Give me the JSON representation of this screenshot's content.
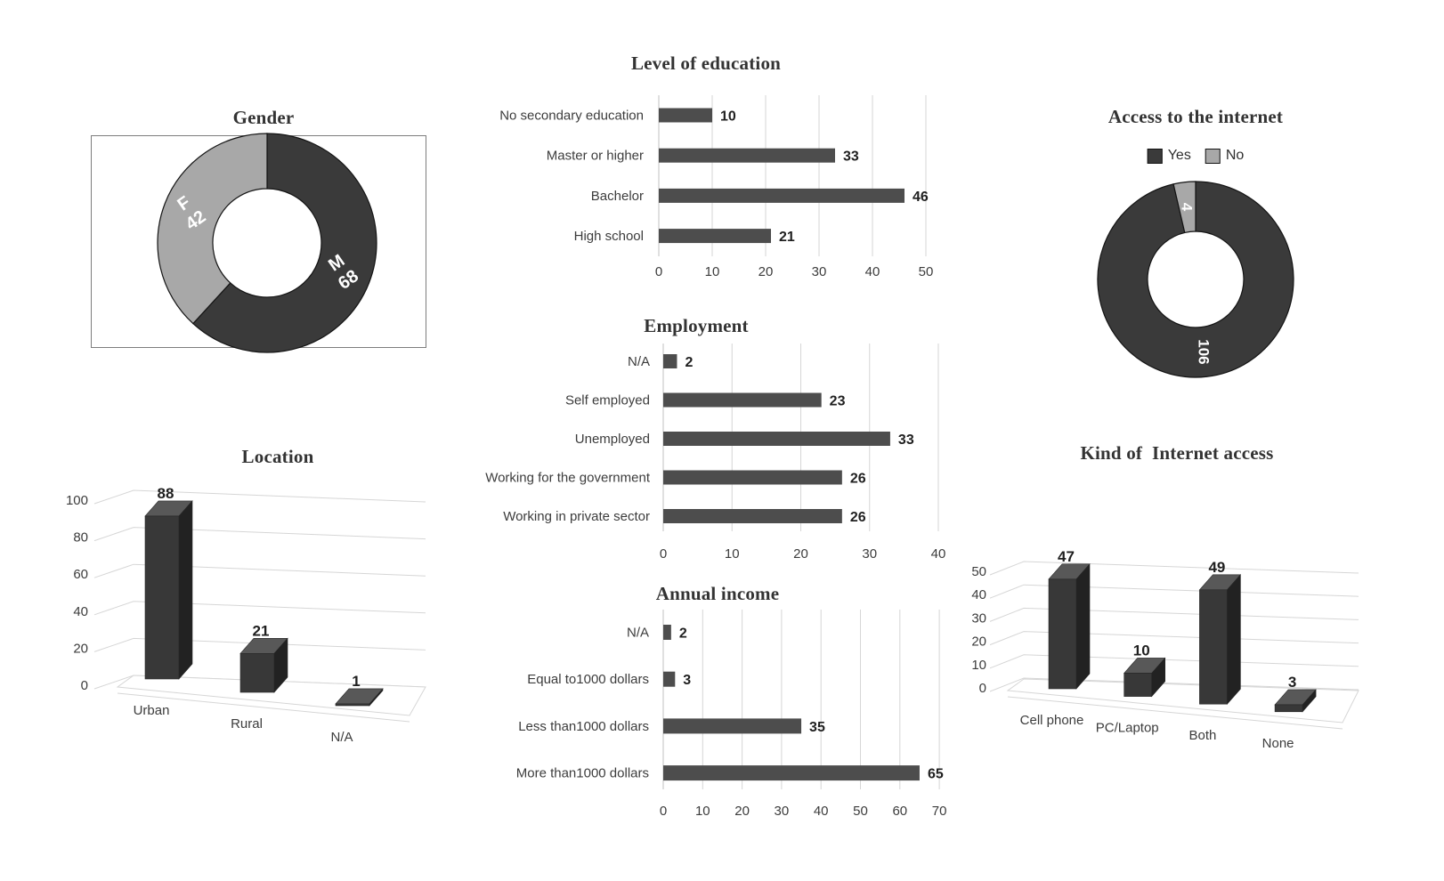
{
  "figure": {
    "description": "Survey demographics figure with seven charts",
    "background": "#ffffff"
  },
  "styles": {
    "bar_color": "#4d4d4d",
    "dark": "#3a3a3a",
    "light_gray": "#a8a8a8",
    "grid_color": "#d6d6d6",
    "axis_color": "#c0c0c0",
    "text_color": "#3c3c3c",
    "value_color": "#1f1f1f",
    "top_face": "#585858",
    "side_face": "#222222",
    "front_face": "#383838",
    "edge_color": "#262626",
    "donut_label_color": "#ffffff"
  },
  "chart_data": [
    {
      "id": "gender",
      "type": "pie",
      "variant": "donut",
      "title": "Gender",
      "framed": true,
      "label_color": "#ffffff",
      "slices": [
        {
          "label": "M",
          "value": 68,
          "color": "#3a3a3a"
        },
        {
          "label": "F",
          "value": 42,
          "color": "#a8a8a8"
        }
      ]
    },
    {
      "id": "education",
      "type": "bar",
      "orientation": "horizontal",
      "title": "Level of education",
      "categories": [
        "No secondary education",
        "Master or higher",
        "Bachelor",
        "High school"
      ],
      "values": [
        10,
        33,
        46,
        21
      ],
      "xlim": [
        0,
        50
      ],
      "xticks": [
        0,
        10,
        20,
        30,
        40,
        50
      ],
      "grid": true,
      "bar_color": "#4d4d4d"
    },
    {
      "id": "internet_access",
      "type": "pie",
      "variant": "donut",
      "title": "Access to the internet",
      "legend_position": "top",
      "label_color": "#ffffff",
      "legend": [
        {
          "label": "Yes",
          "color": "#3a3a3a"
        },
        {
          "label": "No",
          "color": "#a8a8a8"
        }
      ],
      "slices": [
        {
          "label": "Yes",
          "value": 106,
          "color": "#3a3a3a"
        },
        {
          "label": "No",
          "value": 4,
          "color": "#a8a8a8"
        }
      ]
    },
    {
      "id": "location",
      "type": "bar",
      "variant": "3d-column",
      "title": "Location",
      "categories": [
        "Urban",
        "Rural",
        "N/A"
      ],
      "values": [
        88,
        21,
        1
      ],
      "ylim": [
        0,
        100
      ],
      "yticks": [
        100,
        80,
        60,
        40,
        20,
        0
      ],
      "grid": true,
      "bar_color": "#383838"
    },
    {
      "id": "employment",
      "type": "bar",
      "orientation": "horizontal",
      "title": "Employment",
      "categories": [
        "N/A",
        "Self employed",
        "Unemployed",
        "Working for the government",
        "Working in private sector"
      ],
      "values": [
        2,
        23,
        33,
        26,
        26
      ],
      "xlim": [
        0,
        40
      ],
      "xticks": [
        0,
        10,
        20,
        30,
        40
      ],
      "grid": true,
      "bar_color": "#4d4d4d"
    },
    {
      "id": "income",
      "type": "bar",
      "orientation": "horizontal",
      "title": "Annual income",
      "categories": [
        "N/A",
        "Equal to1000 dollars",
        "Less than1000 dollars",
        "More than1000 dollars"
      ],
      "values": [
        2,
        3,
        35,
        65
      ],
      "xlim": [
        0,
        70
      ],
      "xticks": [
        0,
        10,
        20,
        30,
        40,
        50,
        60,
        70
      ],
      "grid": true,
      "bar_color": "#4d4d4d"
    },
    {
      "id": "internet_kind",
      "type": "bar",
      "variant": "3d-column",
      "title": "Kind of  Internet access",
      "categories": [
        "Cell phone",
        "PC/Laptop",
        "Both",
        "None"
      ],
      "values": [
        47,
        10,
        49,
        3
      ],
      "ylim": [
        0,
        50
      ],
      "yticks": [
        50,
        40,
        30,
        20,
        10,
        0
      ],
      "grid": true,
      "bar_color": "#383838"
    }
  ]
}
